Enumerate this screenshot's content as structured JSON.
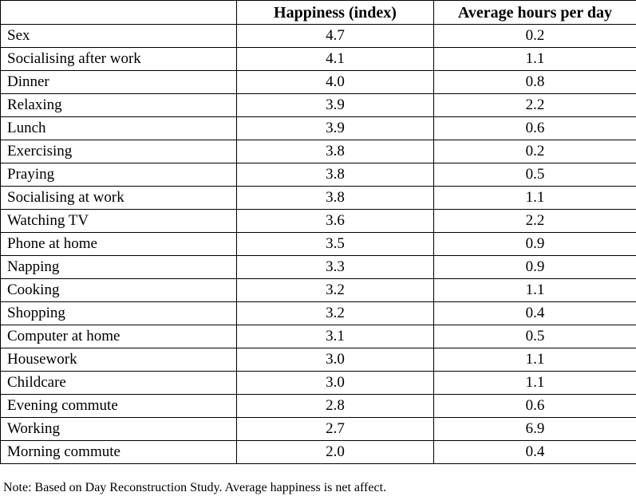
{
  "table": {
    "headers": [
      "",
      "Happiness (index)",
      "Average hours per day"
    ],
    "rows": [
      {
        "activity": "Sex",
        "happiness": "4.7",
        "hours": "0.2"
      },
      {
        "activity": "Socialising after work",
        "happiness": "4.1",
        "hours": "1.1"
      },
      {
        "activity": "Dinner",
        "happiness": "4.0",
        "hours": "0.8"
      },
      {
        "activity": "Relaxing",
        "happiness": "3.9",
        "hours": "2.2"
      },
      {
        "activity": "Lunch",
        "happiness": "3.9",
        "hours": "0.6"
      },
      {
        "activity": "Exercising",
        "happiness": "3.8",
        "hours": "0.2"
      },
      {
        "activity": "Praying",
        "happiness": "3.8",
        "hours": "0.5"
      },
      {
        "activity": "Socialising at work",
        "happiness": "3.8",
        "hours": "1.1"
      },
      {
        "activity": "Watching TV",
        "happiness": "3.6",
        "hours": "2.2"
      },
      {
        "activity": "Phone at home",
        "happiness": "3.5",
        "hours": "0.9"
      },
      {
        "activity": "Napping",
        "happiness": "3.3",
        "hours": "0.9"
      },
      {
        "activity": "Cooking",
        "happiness": "3.2",
        "hours": "1.1"
      },
      {
        "activity": "Shopping",
        "happiness": "3.2",
        "hours": "0.4"
      },
      {
        "activity": "Computer at home",
        "happiness": "3.1",
        "hours": "0.5"
      },
      {
        "activity": "Housework",
        "happiness": "3.0",
        "hours": "1.1"
      },
      {
        "activity": "Childcare",
        "happiness": "3.0",
        "hours": "1.1"
      },
      {
        "activity": "Evening commute",
        "happiness": "2.8",
        "hours": "0.6"
      },
      {
        "activity": "Working",
        "happiness": "2.7",
        "hours": "6.9"
      },
      {
        "activity": "Morning commute",
        "happiness": "2.0",
        "hours": "0.4"
      }
    ]
  },
  "note": "Note: Based on Day Reconstruction Study.  Average happiness is net affect."
}
